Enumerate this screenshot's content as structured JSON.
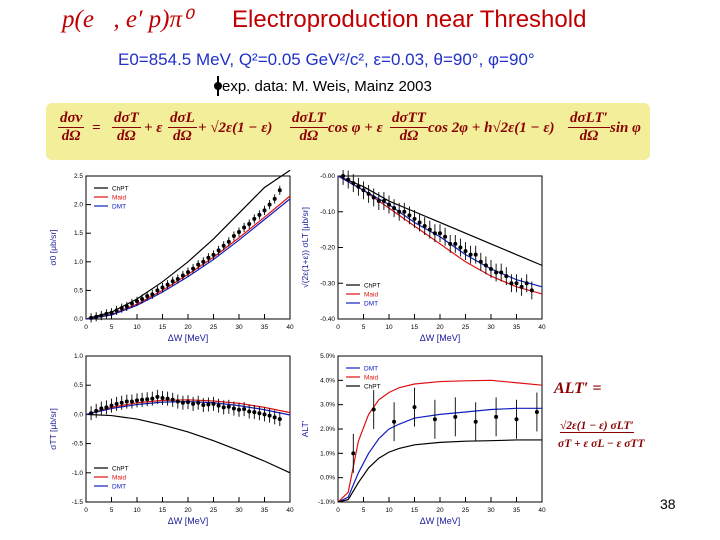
{
  "header": {
    "reaction": "p(e⃗, e′ p)π⁰",
    "title": "Electroproduction near Threshold",
    "kinematics": "E0=854.5 MeV,  Q²=0.05 GeV²/c²,  ε=0.03,  θ=90°,  φ=90°",
    "exp_label": "exp. data: M. Weis, Mainz 2003"
  },
  "formula": {
    "lhs_num": "dσv",
    "lhs_den": "dΩ",
    "t1_num": "dσT",
    "t1_den": "dΩ",
    "plus_eps": "+ ε",
    "t2_num": "dσL",
    "t2_den": "dΩ",
    "sqrt1": "+ √2ε(1 − ε)",
    "t3_num": "dσLT",
    "t3_den": "dΩ",
    "cos_term": "cos φ + ε",
    "t4_num": "dσTT",
    "t4_den": "dΩ",
    "cos2_term": "cos 2φ + h√2ε(1 − ε)",
    "t5_num": "dσLT′",
    "t5_den": "dΩ",
    "sin_term": "sin φ"
  },
  "alt_formula": {
    "lhs": "ALT′ =",
    "num": "√2ε(1 − ε) σLT′",
    "den": "σT + ε σL − ε σTT"
  },
  "page_number": "38",
  "colors": {
    "chpt": "#000000",
    "maid": "#e01010",
    "dmt": "#1020c0",
    "data": "#000000"
  },
  "chart_data": [
    {
      "type": "line",
      "panel": "top-left",
      "ylabel": "σ0  [μb/sr]",
      "xlabel": "ΔW  [MeV]",
      "xlim": [
        0,
        40
      ],
      "ylim": [
        0,
        2.5
      ],
      "xticks": [
        "0",
        "5",
        "10",
        "15",
        "20",
        "25",
        "30",
        "35",
        "40"
      ],
      "yticks": [
        "0.0",
        "0.5",
        "1.0",
        "1.5",
        "2.0",
        "2.5"
      ],
      "yticks_vals": [
        0,
        0.5,
        1,
        1.5,
        2,
        2.5
      ],
      "legend": [
        "ChPT",
        "Maid",
        "DMT"
      ],
      "legend_pos": "top-left",
      "x": [
        0,
        5,
        10,
        15,
        20,
        25,
        30,
        35,
        40
      ],
      "series": [
        {
          "name": "ChPT",
          "color": "#000000",
          "values": [
            0.0,
            0.12,
            0.35,
            0.65,
            1.0,
            1.4,
            1.85,
            2.3,
            2.6
          ]
        },
        {
          "name": "Maid",
          "color": "#e01010",
          "values": [
            0.0,
            0.08,
            0.26,
            0.5,
            0.78,
            1.08,
            1.42,
            1.78,
            2.15
          ]
        },
        {
          "name": "DMT",
          "color": "#1020c0",
          "values": [
            0.0,
            0.07,
            0.24,
            0.47,
            0.74,
            1.04,
            1.38,
            1.74,
            2.1
          ]
        }
      ],
      "data_points": [
        {
          "x": 1,
          "y": 0.02
        },
        {
          "x": 2,
          "y": 0.04
        },
        {
          "x": 3,
          "y": 0.06
        },
        {
          "x": 4,
          "y": 0.09
        },
        {
          "x": 5,
          "y": 0.11
        },
        {
          "x": 6,
          "y": 0.15
        },
        {
          "x": 7,
          "y": 0.19
        },
        {
          "x": 8,
          "y": 0.22
        },
        {
          "x": 9,
          "y": 0.27
        },
        {
          "x": 10,
          "y": 0.31
        },
        {
          "x": 11,
          "y": 0.35
        },
        {
          "x": 12,
          "y": 0.4
        },
        {
          "x": 13,
          "y": 0.43
        },
        {
          "x": 14,
          "y": 0.5
        },
        {
          "x": 15,
          "y": 0.55
        },
        {
          "x": 16,
          "y": 0.6
        },
        {
          "x": 17,
          "y": 0.66
        },
        {
          "x": 18,
          "y": 0.7
        },
        {
          "x": 19,
          "y": 0.76
        },
        {
          "x": 20,
          "y": 0.82
        },
        {
          "x": 21,
          "y": 0.88
        },
        {
          "x": 22,
          "y": 0.95
        },
        {
          "x": 23,
          "y": 1.0
        },
        {
          "x": 24,
          "y": 1.07
        },
        {
          "x": 25,
          "y": 1.12
        },
        {
          "x": 26,
          "y": 1.2
        },
        {
          "x": 27,
          "y": 1.28
        },
        {
          "x": 28,
          "y": 1.35
        },
        {
          "x": 29,
          "y": 1.45
        },
        {
          "x": 30,
          "y": 1.52
        },
        {
          "x": 31,
          "y": 1.6
        },
        {
          "x": 32,
          "y": 1.66
        },
        {
          "x": 33,
          "y": 1.75
        },
        {
          "x": 34,
          "y": 1.82
        },
        {
          "x": 35,
          "y": 1.9
        },
        {
          "x": 36,
          "y": 2.0
        },
        {
          "x": 37,
          "y": 2.1
        },
        {
          "x": 38,
          "y": 2.25
        }
      ],
      "error": 0.08
    },
    {
      "type": "line",
      "panel": "top-right",
      "ylabel": "√(2ε(1+ε)) σLT  [μb/sr]",
      "xlabel": "ΔW  [MeV]",
      "xlim": [
        0,
        40
      ],
      "ylim": [
        -0.4,
        0.0
      ],
      "xticks": [
        "0",
        "5",
        "10",
        "15",
        "20",
        "25",
        "30",
        "35",
        "40"
      ],
      "yticks": [
        "-0.00",
        "-0.10",
        "-0.20",
        "-0.30",
        "-0.40"
      ],
      "yticks_vals": [
        0,
        -0.1,
        -0.2,
        -0.3,
        -0.4
      ],
      "legend": [
        "ChPT",
        "Maid",
        "DMT"
      ],
      "legend_pos": "bottom-left",
      "x": [
        0,
        5,
        10,
        15,
        20,
        25,
        30,
        35,
        40
      ],
      "series": [
        {
          "name": "ChPT",
          "color": "#000000",
          "values": [
            0.0,
            -0.03,
            -0.07,
            -0.1,
            -0.13,
            -0.16,
            -0.19,
            -0.22,
            -0.25
          ]
        },
        {
          "name": "Maid",
          "color": "#e01010",
          "values": [
            0.0,
            -0.04,
            -0.09,
            -0.14,
            -0.19,
            -0.24,
            -0.28,
            -0.31,
            -0.33
          ]
        },
        {
          "name": "DMT",
          "color": "#1020c0",
          "values": [
            0.0,
            -0.04,
            -0.08,
            -0.13,
            -0.17,
            -0.22,
            -0.26,
            -0.29,
            -0.31
          ]
        }
      ],
      "data_points": [
        {
          "x": 1,
          "y": -0.0
        },
        {
          "x": 2,
          "y": -0.01
        },
        {
          "x": 3,
          "y": -0.02
        },
        {
          "x": 4,
          "y": -0.03
        },
        {
          "x": 5,
          "y": -0.04
        },
        {
          "x": 6,
          "y": -0.05
        },
        {
          "x": 7,
          "y": -0.06
        },
        {
          "x": 8,
          "y": -0.07
        },
        {
          "x": 9,
          "y": -0.07
        },
        {
          "x": 10,
          "y": -0.08
        },
        {
          "x": 11,
          "y": -0.09
        },
        {
          "x": 12,
          "y": -0.1
        },
        {
          "x": 13,
          "y": -0.1
        },
        {
          "x": 14,
          "y": -0.11
        },
        {
          "x": 15,
          "y": -0.12
        },
        {
          "x": 16,
          "y": -0.13
        },
        {
          "x": 17,
          "y": -0.14
        },
        {
          "x": 18,
          "y": -0.15
        },
        {
          "x": 19,
          "y": -0.16
        },
        {
          "x": 20,
          "y": -0.16
        },
        {
          "x": 21,
          "y": -0.17
        },
        {
          "x": 22,
          "y": -0.19
        },
        {
          "x": 23,
          "y": -0.19
        },
        {
          "x": 24,
          "y": -0.2
        },
        {
          "x": 25,
          "y": -0.21
        },
        {
          "x": 26,
          "y": -0.22
        },
        {
          "x": 27,
          "y": -0.22
        },
        {
          "x": 28,
          "y": -0.24
        },
        {
          "x": 29,
          "y": -0.25
        },
        {
          "x": 30,
          "y": -0.26
        },
        {
          "x": 31,
          "y": -0.27
        },
        {
          "x": 32,
          "y": -0.27
        },
        {
          "x": 33,
          "y": -0.28
        },
        {
          "x": 34,
          "y": -0.3
        },
        {
          "x": 35,
          "y": -0.3
        },
        {
          "x": 36,
          "y": -0.31
        },
        {
          "x": 37,
          "y": -0.3
        },
        {
          "x": 38,
          "y": -0.32
        }
      ],
      "error": 0.025
    },
    {
      "type": "line",
      "panel": "bottom-left",
      "ylabel": "σTT  [μb/sr]",
      "xlabel": "ΔW  [MeV]",
      "xlim": [
        0,
        40
      ],
      "ylim": [
        -1.5,
        1.0
      ],
      "xticks": [
        "0",
        "5",
        "10",
        "15",
        "20",
        "25",
        "30",
        "35",
        "40"
      ],
      "yticks": [
        "1.0",
        "0.5",
        "0.0",
        "-0.5",
        "-1.0",
        "-1.5"
      ],
      "yticks_vals": [
        1,
        0.5,
        0,
        -0.5,
        -1,
        -1.5
      ],
      "legend": [
        "ChPT",
        "Maid",
        "DMT"
      ],
      "legend_pos": "bottom-left",
      "x": [
        0,
        5,
        10,
        15,
        20,
        25,
        30,
        35,
        40
      ],
      "series": [
        {
          "name": "ChPT",
          "color": "#000000",
          "values": [
            0.0,
            -0.02,
            -0.08,
            -0.18,
            -0.3,
            -0.45,
            -0.62,
            -0.8,
            -1.0
          ]
        },
        {
          "name": "Maid",
          "color": "#e01010",
          "values": [
            0.0,
            0.12,
            0.2,
            0.24,
            0.25,
            0.23,
            0.19,
            0.12,
            0.03
          ]
        },
        {
          "name": "DMT",
          "color": "#1020c0",
          "values": [
            0.0,
            0.1,
            0.17,
            0.21,
            0.22,
            0.2,
            0.15,
            0.08,
            -0.01
          ]
        }
      ],
      "data_points": [
        {
          "x": 1,
          "y": 0.02
        },
        {
          "x": 2,
          "y": 0.06
        },
        {
          "x": 3,
          "y": 0.1
        },
        {
          "x": 4,
          "y": 0.12
        },
        {
          "x": 5,
          "y": 0.15
        },
        {
          "x": 6,
          "y": 0.18
        },
        {
          "x": 7,
          "y": 0.2
        },
        {
          "x": 8,
          "y": 0.22
        },
        {
          "x": 9,
          "y": 0.22
        },
        {
          "x": 10,
          "y": 0.24
        },
        {
          "x": 11,
          "y": 0.25
        },
        {
          "x": 12,
          "y": 0.26
        },
        {
          "x": 13,
          "y": 0.27
        },
        {
          "x": 14,
          "y": 0.3
        },
        {
          "x": 15,
          "y": 0.28
        },
        {
          "x": 16,
          "y": 0.27
        },
        {
          "x": 17,
          "y": 0.25
        },
        {
          "x": 18,
          "y": 0.22
        },
        {
          "x": 19,
          "y": 0.2
        },
        {
          "x": 20,
          "y": 0.21
        },
        {
          "x": 21,
          "y": 0.18
        },
        {
          "x": 22,
          "y": 0.2
        },
        {
          "x": 23,
          "y": 0.16
        },
        {
          "x": 24,
          "y": 0.17
        },
        {
          "x": 25,
          "y": 0.18
        },
        {
          "x": 26,
          "y": 0.15
        },
        {
          "x": 27,
          "y": 0.12
        },
        {
          "x": 28,
          "y": 0.13
        },
        {
          "x": 29,
          "y": 0.1
        },
        {
          "x": 30,
          "y": 0.08
        },
        {
          "x": 31,
          "y": 0.09
        },
        {
          "x": 32,
          "y": 0.05
        },
        {
          "x": 33,
          "y": 0.04
        },
        {
          "x": 34,
          "y": 0.02
        },
        {
          "x": 35,
          "y": 0.0
        },
        {
          "x": 36,
          "y": -0.02
        },
        {
          "x": 37,
          "y": -0.05
        },
        {
          "x": 38,
          "y": -0.08
        }
      ],
      "error": 0.12
    },
    {
      "type": "line",
      "panel": "bottom-right",
      "ylabel": "ALT′",
      "xlabel": "ΔW  [MeV]",
      "xlim": [
        0,
        40
      ],
      "ylim": [
        -1.0,
        5.0
      ],
      "xticks": [
        "0",
        "5",
        "10",
        "15",
        "20",
        "25",
        "30",
        "35",
        "40"
      ],
      "yticks": [
        "5.0%",
        "4.0%",
        "3.0%",
        "2.0%",
        "1.0%",
        "0.0%",
        "-1.0%"
      ],
      "yticks_vals": [
        5,
        4,
        3,
        2,
        1,
        0,
        -1
      ],
      "legend": [
        "DMT",
        "Maid",
        "ChPT"
      ],
      "legend_pos": "top-left",
      "x": [
        0,
        2,
        4,
        6,
        8,
        10,
        12,
        15,
        20,
        25,
        30,
        35,
        40
      ],
      "series": [
        {
          "name": "DMT",
          "color": "#1020c0",
          "values": [
            -1.0,
            -0.8,
            0.2,
            1.0,
            1.6,
            2.0,
            2.2,
            2.45,
            2.6,
            2.7,
            2.8,
            2.85,
            2.85
          ]
        },
        {
          "name": "Maid",
          "color": "#e01010",
          "values": [
            -1.0,
            -0.6,
            1.5,
            2.6,
            3.2,
            3.5,
            3.7,
            3.85,
            3.95,
            3.98,
            4.0,
            3.9,
            3.8
          ]
        },
        {
          "name": "ChPT",
          "color": "#000000",
          "values": [
            -1.0,
            -0.9,
            -0.2,
            0.4,
            0.8,
            1.05,
            1.2,
            1.35,
            1.45,
            1.5,
            1.52,
            1.55,
            1.55
          ]
        }
      ],
      "data_points": [
        {
          "x": 3,
          "y": 1.0
        },
        {
          "x": 7,
          "y": 2.8
        },
        {
          "x": 11,
          "y": 2.3
        },
        {
          "x": 15,
          "y": 2.9
        },
        {
          "x": 19,
          "y": 2.4
        },
        {
          "x": 23,
          "y": 2.5
        },
        {
          "x": 27,
          "y": 2.3
        },
        {
          "x": 31,
          "y": 2.5
        },
        {
          "x": 35,
          "y": 2.4
        },
        {
          "x": 39,
          "y": 2.7
        }
      ],
      "error": 0.8
    }
  ]
}
